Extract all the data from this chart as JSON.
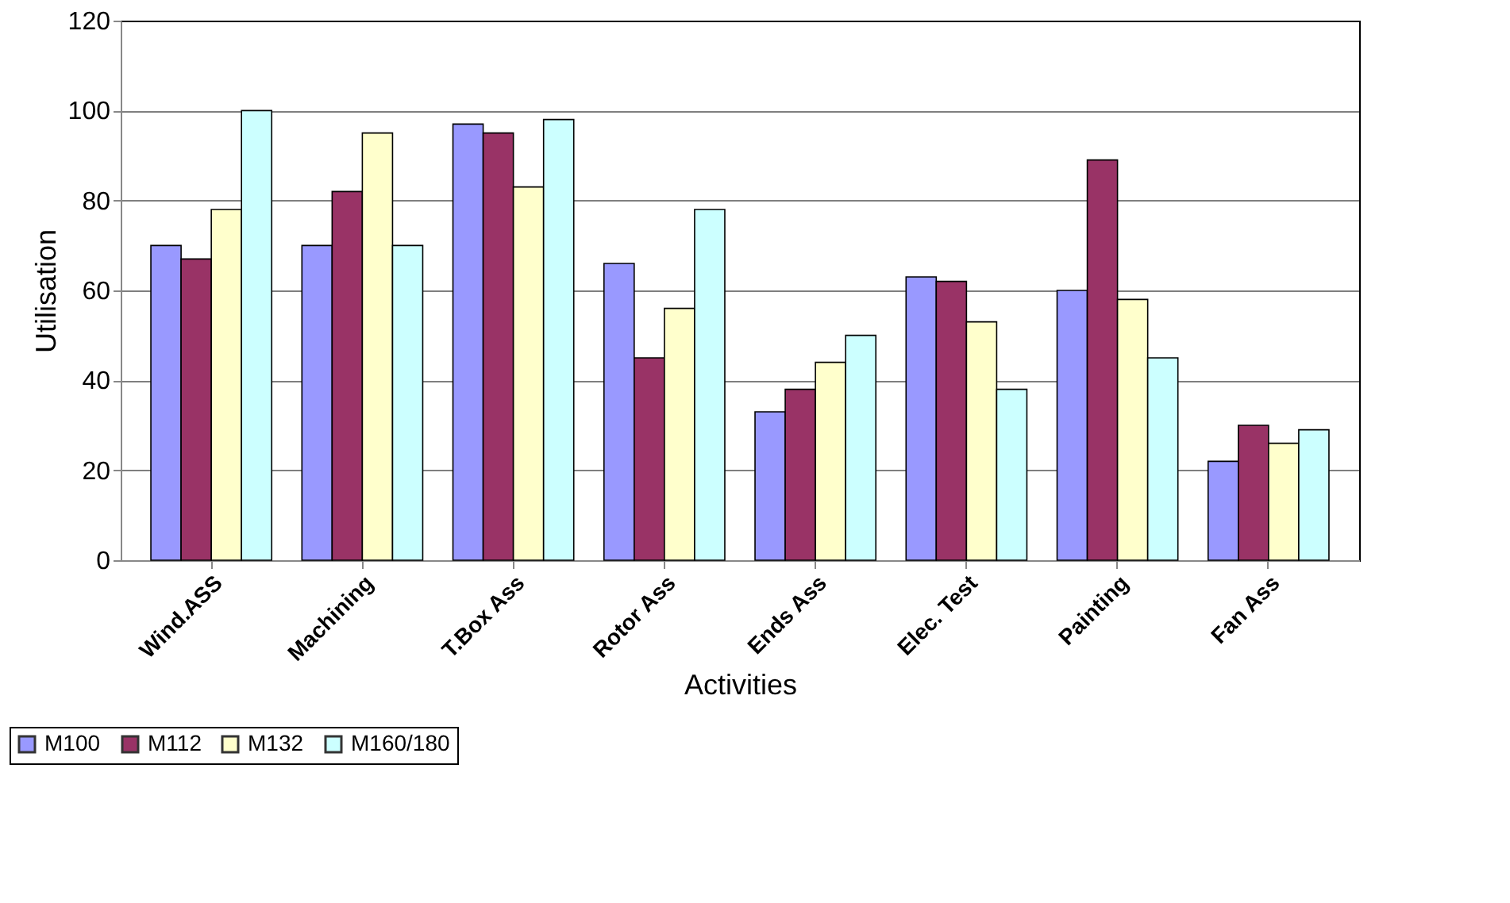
{
  "chart_data": {
    "type": "bar",
    "xlabel": "Activities",
    "ylabel": "Utilisation",
    "categories": [
      "Wind.ASS",
      "Machining",
      "T.Box Ass",
      "Rotor Ass",
      "Ends Ass",
      "Elec. Test",
      "Painting",
      "Fan Ass"
    ],
    "series": [
      {
        "name": "M100",
        "color": "#9999ff",
        "values": [
          70,
          70,
          97,
          66,
          33,
          63,
          60,
          22
        ]
      },
      {
        "name": "M112",
        "color": "#993366",
        "values": [
          67,
          82,
          95,
          45,
          38,
          62,
          89,
          30
        ]
      },
      {
        "name": "M132",
        "color": "#ffffcc",
        "values": [
          78,
          95,
          83,
          56,
          44,
          53,
          58,
          26
        ]
      },
      {
        "name": "M160/180",
        "color": "#ccffff",
        "values": [
          100,
          70,
          98,
          78,
          50,
          38,
          45,
          29
        ]
      }
    ],
    "ylim": [
      0,
      120
    ],
    "yticks": [
      0,
      20,
      40,
      60,
      80,
      100,
      120
    ],
    "grid": "y",
    "legend": "bottom left"
  }
}
